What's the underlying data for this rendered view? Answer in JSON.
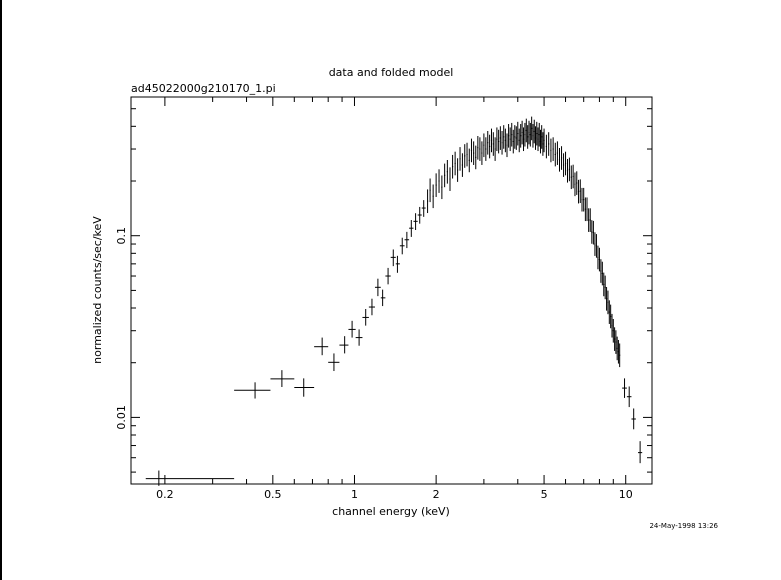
{
  "chart_data": {
    "type": "scatter",
    "title": "data and folded model",
    "subtitle": "ad45022000g210170_1.pi",
    "xlabel": "channel energy (keV)",
    "ylabel": "normalized counts/sec/keV",
    "xscale": "log",
    "yscale": "log",
    "xlim": [
      0.15,
      12.5
    ],
    "ylim": [
      0.0043,
      0.58
    ],
    "x_tick_labels": [
      "0.2",
      "0.5",
      "1",
      "2",
      "5",
      "10"
    ],
    "x_ticks": [
      0.2,
      0.5,
      1,
      2,
      5,
      10
    ],
    "y_tick_labels": [
      "0.01",
      "0.1"
    ],
    "y_ticks": [
      0.01,
      0.1
    ],
    "grid": false,
    "series": [
      {
        "points": [
          {
            "x": 0.19,
            "y": 0.0046,
            "xlo": 0.17,
            "xhi": 0.36,
            "ylo": 0.0042,
            "yhi": 0.0051
          },
          {
            "x": 0.43,
            "y": 0.0141,
            "xlo": 0.36,
            "xhi": 0.49,
            "ylo": 0.0127,
            "yhi": 0.0156
          },
          {
            "x": 0.54,
            "y": 0.0163,
            "xlo": 0.49,
            "xhi": 0.6,
            "ylo": 0.0147,
            "yhi": 0.0182
          },
          {
            "x": 0.65,
            "y": 0.0146,
            "xlo": 0.6,
            "xhi": 0.71,
            "ylo": 0.013,
            "yhi": 0.0164
          },
          {
            "x": 0.76,
            "y": 0.0245,
            "xlo": 0.71,
            "xhi": 0.8,
            "ylo": 0.022,
            "yhi": 0.0275
          },
          {
            "x": 0.84,
            "y": 0.0201,
            "xlo": 0.8,
            "xhi": 0.88,
            "ylo": 0.018,
            "yhi": 0.0225
          },
          {
            "x": 0.92,
            "y": 0.025,
            "xlo": 0.88,
            "xhi": 0.95,
            "ylo": 0.0225,
            "yhi": 0.028
          },
          {
            "x": 0.98,
            "y": 0.0305,
            "xlo": 0.95,
            "xhi": 1.01,
            "ylo": 0.0275,
            "yhi": 0.034
          },
          {
            "x": 1.04,
            "y": 0.0275,
            "xlo": 1.01,
            "xhi": 1.07,
            "ylo": 0.0248,
            "yhi": 0.0305
          },
          {
            "x": 1.1,
            "y": 0.0355,
            "xlo": 1.07,
            "xhi": 1.13,
            "ylo": 0.032,
            "yhi": 0.0395
          },
          {
            "x": 1.16,
            "y": 0.0405,
            "xlo": 1.13,
            "xhi": 1.19,
            "ylo": 0.0365,
            "yhi": 0.045
          },
          {
            "x": 1.22,
            "y": 0.052,
            "xlo": 1.19,
            "xhi": 1.25,
            "ylo": 0.0465,
            "yhi": 0.058
          },
          {
            "x": 1.27,
            "y": 0.0455,
            "xlo": 1.25,
            "xhi": 1.3,
            "ylo": 0.041,
            "yhi": 0.0505
          },
          {
            "x": 1.33,
            "y": 0.06,
            "xlo": 1.3,
            "xhi": 1.36,
            "ylo": 0.054,
            "yhi": 0.0665
          },
          {
            "x": 1.39,
            "y": 0.076,
            "xlo": 1.36,
            "xhi": 1.42,
            "ylo": 0.068,
            "yhi": 0.084
          },
          {
            "x": 1.44,
            "y": 0.07,
            "xlo": 1.42,
            "xhi": 1.47,
            "ylo": 0.0625,
            "yhi": 0.0775
          },
          {
            "x": 1.5,
            "y": 0.088,
            "xlo": 1.47,
            "xhi": 1.53,
            "ylo": 0.079,
            "yhi": 0.0975
          },
          {
            "x": 1.56,
            "y": 0.095,
            "xlo": 1.53,
            "xhi": 1.59,
            "ylo": 0.0855,
            "yhi": 0.105
          },
          {
            "x": 1.62,
            "y": 0.11,
            "xlo": 1.59,
            "xhi": 1.65,
            "ylo": 0.0985,
            "yhi": 0.122
          },
          {
            "x": 1.68,
            "y": 0.12,
            "xlo": 1.65,
            "xhi": 1.71,
            "ylo": 0.1075,
            "yhi": 0.133
          },
          {
            "x": 1.74,
            "y": 0.13,
            "xlo": 1.71,
            "xhi": 1.77,
            "ylo": 0.1165,
            "yhi": 0.144
          },
          {
            "x": 1.8,
            "y": 0.142,
            "xlo": 1.77,
            "xhi": 1.83,
            "ylo": 0.127,
            "yhi": 0.157
          }
        ]
      },
      {
        "points": [
          [
            1.86,
            0.155
          ],
          [
            1.9,
            0.178
          ],
          [
            1.95,
            0.165
          ],
          [
            2.0,
            0.19
          ],
          [
            2.05,
            0.2
          ],
          [
            2.1,
            0.185
          ],
          [
            2.15,
            0.215
          ],
          [
            2.2,
            0.225
          ],
          [
            2.25,
            0.205
          ],
          [
            2.3,
            0.24
          ],
          [
            2.35,
            0.25
          ],
          [
            2.4,
            0.23
          ],
          [
            2.45,
            0.265
          ],
          [
            2.5,
            0.245
          ],
          [
            2.55,
            0.275
          ],
          [
            2.6,
            0.28
          ],
          [
            2.65,
            0.26
          ],
          [
            2.7,
            0.295
          ],
          [
            2.75,
            0.285
          ],
          [
            2.8,
            0.27
          ],
          [
            2.85,
            0.305
          ],
          [
            2.9,
            0.3
          ],
          [
            2.95,
            0.285
          ],
          [
            3.0,
            0.315
          ],
          [
            3.05,
            0.3
          ],
          [
            3.1,
            0.325
          ],
          [
            3.15,
            0.31
          ],
          [
            3.2,
            0.335
          ],
          [
            3.25,
            0.32
          ],
          [
            3.3,
            0.3
          ],
          [
            3.35,
            0.34
          ],
          [
            3.4,
            0.33
          ],
          [
            3.45,
            0.345
          ],
          [
            3.5,
            0.325
          ],
          [
            3.55,
            0.35
          ],
          [
            3.6,
            0.335
          ],
          [
            3.65,
            0.315
          ],
          [
            3.7,
            0.355
          ],
          [
            3.75,
            0.34
          ],
          [
            3.8,
            0.36
          ],
          [
            3.85,
            0.33
          ],
          [
            3.9,
            0.35
          ],
          [
            3.95,
            0.345
          ],
          [
            4.0,
            0.365
          ],
          [
            4.05,
            0.335
          ],
          [
            4.1,
            0.355
          ],
          [
            4.15,
            0.37
          ],
          [
            4.2,
            0.34
          ],
          [
            4.25,
            0.36
          ],
          [
            4.3,
            0.38
          ],
          [
            4.35,
            0.35
          ],
          [
            4.4,
            0.37
          ],
          [
            4.45,
            0.36
          ],
          [
            4.5,
            0.39
          ],
          [
            4.55,
            0.355
          ],
          [
            4.6,
            0.375
          ],
          [
            4.65,
            0.345
          ],
          [
            4.7,
            0.365
          ],
          [
            4.75,
            0.34
          ],
          [
            4.8,
            0.36
          ],
          [
            4.85,
            0.33
          ],
          [
            4.9,
            0.35
          ],
          [
            4.95,
            0.32
          ],
          [
            5.0,
            0.335
          ],
          [
            5.1,
            0.31
          ],
          [
            5.2,
            0.32
          ],
          [
            5.3,
            0.295
          ],
          [
            5.4,
            0.3
          ],
          [
            5.5,
            0.28
          ],
          [
            5.6,
            0.285
          ],
          [
            5.7,
            0.262
          ],
          [
            5.8,
            0.268
          ],
          [
            5.9,
            0.245
          ],
          [
            6.0,
            0.25
          ],
          [
            6.1,
            0.228
          ],
          [
            6.2,
            0.232
          ],
          [
            6.3,
            0.21
          ],
          [
            6.4,
            0.212
          ],
          [
            6.5,
            0.192
          ],
          [
            6.6,
            0.195
          ],
          [
            6.7,
            0.175
          ],
          [
            6.8,
            0.176
          ],
          [
            6.9,
            0.158
          ],
          [
            7.0,
            0.158
          ],
          [
            7.1,
            0.14
          ],
          [
            7.2,
            0.14
          ],
          [
            7.3,
            0.122
          ],
          [
            7.4,
            0.122
          ],
          [
            7.5,
            0.105
          ],
          [
            7.6,
            0.104
          ],
          [
            7.7,
            0.09
          ],
          [
            7.8,
            0.088
          ],
          [
            7.9,
            0.076
          ],
          [
            8.0,
            0.074
          ],
          [
            8.1,
            0.064
          ],
          [
            8.2,
            0.062
          ],
          [
            8.3,
            0.054
          ],
          [
            8.4,
            0.052
          ],
          [
            8.5,
            0.045
          ],
          [
            8.6,
            0.043
          ],
          [
            8.7,
            0.038
          ],
          [
            8.8,
            0.036
          ],
          [
            8.9,
            0.032
          ],
          [
            9.0,
            0.03
          ],
          [
            9.1,
            0.027
          ],
          [
            9.2,
            0.026
          ],
          [
            9.3,
            0.024
          ],
          [
            9.4,
            0.023
          ],
          [
            9.5,
            0.022
          ]
        ]
      },
      {
        "points": [
          {
            "x": 9.9,
            "y": 0.0145,
            "xlo": 9.7,
            "xhi": 10.1,
            "ylo": 0.0128,
            "yhi": 0.0164
          },
          {
            "x": 10.3,
            "y": 0.013,
            "xlo": 10.1,
            "xhi": 10.5,
            "ylo": 0.0114,
            "yhi": 0.0148
          },
          {
            "x": 10.7,
            "y": 0.0098,
            "xlo": 10.5,
            "xhi": 10.9,
            "ylo": 0.0086,
            "yhi": 0.0112
          },
          {
            "x": 11.3,
            "y": 0.0064,
            "xlo": 11.1,
            "xhi": 11.5,
            "ylo": 0.0056,
            "yhi": 0.0074
          }
        ]
      }
    ],
    "timestamp": "24-May-1998 13:26"
  }
}
